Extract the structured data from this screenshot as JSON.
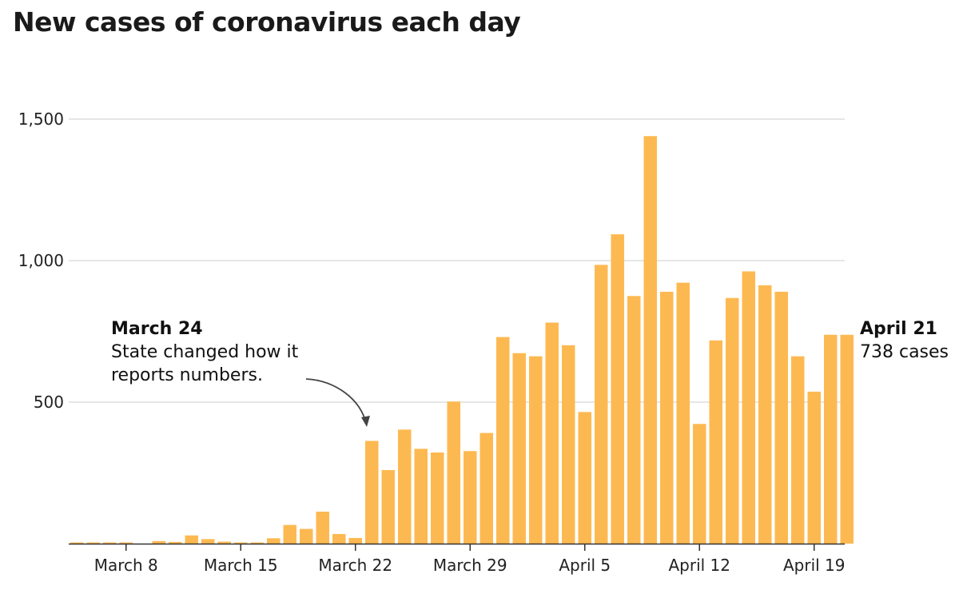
{
  "chart_data": {
    "type": "bar",
    "title": "New cases of coronavirus each day",
    "xlabel": "",
    "ylabel": "",
    "ylim": [
      0,
      1500
    ],
    "y_ticks": [
      500,
      1000,
      1500
    ],
    "y_tick_labels": [
      "500",
      "1,000",
      "1,500"
    ],
    "x_tick_labels": [
      {
        "label": "March 8",
        "index": 3
      },
      {
        "label": "March 15",
        "index": 10
      },
      {
        "label": "March 22",
        "index": 17
      },
      {
        "label": "March 29",
        "index": 24
      },
      {
        "label": "April 5",
        "index": 31
      },
      {
        "label": "April 12",
        "index": 38
      },
      {
        "label": "April 19",
        "index": 45
      }
    ],
    "categories": [
      "March 5",
      "March 6",
      "March 7",
      "March 8",
      "March 9",
      "March 10",
      "March 11",
      "March 12",
      "March 13",
      "March 14",
      "March 15",
      "March 16",
      "March 17",
      "March 18",
      "March 19",
      "March 20",
      "March 21",
      "March 22",
      "March 23",
      "March 24",
      "March 25",
      "March 26",
      "March 27",
      "March 28",
      "March 29",
      "March 30",
      "March 31",
      "April 1",
      "April 2",
      "April 3",
      "April 4",
      "April 5",
      "April 6",
      "April 7",
      "April 8",
      "April 9",
      "April 10",
      "April 11",
      "April 12",
      "April 13",
      "April 14",
      "April 15",
      "April 16",
      "April 17",
      "April 18",
      "April 19",
      "April 20",
      "April 21"
    ],
    "values": [
      4,
      3,
      1,
      4,
      0,
      9,
      6,
      29,
      16,
      7,
      1,
      4,
      19,
      66,
      52,
      113,
      34,
      20,
      363,
      260,
      403,
      335,
      322,
      502,
      327,
      391,
      730,
      673,
      662,
      781,
      701,
      465,
      985,
      1093,
      875,
      1440,
      890,
      922,
      423,
      718,
      868,
      962,
      913,
      890,
      662,
      537,
      738,
      738
    ],
    "annotations": [
      {
        "title": "March 24",
        "lines": [
          "State changed how it",
          "reports numbers."
        ],
        "target_index": 18
      },
      {
        "title": "April 21",
        "lines": [
          "738 cases"
        ],
        "target_index": 47
      }
    ],
    "colors": {
      "bar": "#fdb951",
      "grid": "#dddddd",
      "text": "#111111"
    }
  }
}
